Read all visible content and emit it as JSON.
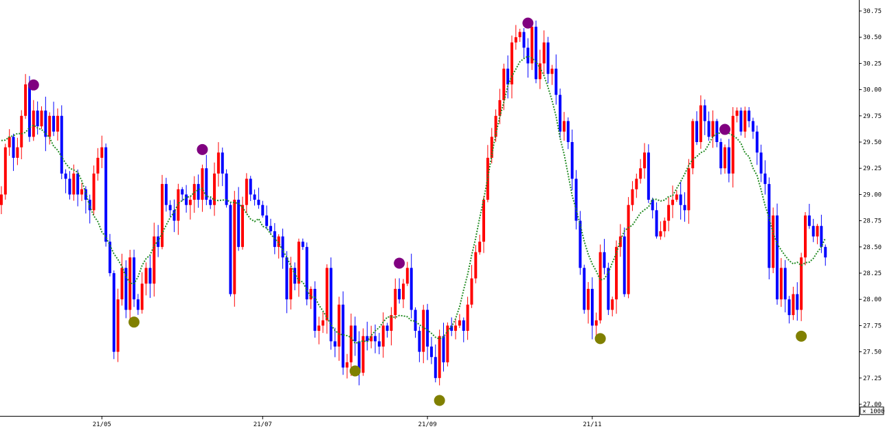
{
  "chart_data": {
    "type": "candlestick",
    "title": "",
    "xlabel": "",
    "ylabel": "",
    "ylim": [
      27.0,
      30.8
    ],
    "y_ticks": [
      "27.00",
      "27.25",
      "27.50",
      "27.75",
      "28.00",
      "28.25",
      "28.50",
      "28.75",
      "29.00",
      "29.25",
      "29.50",
      "29.75",
      "30.00",
      "30.25",
      "30.50",
      "30.75"
    ],
    "y_tick_values": [
      27.0,
      27.25,
      27.5,
      27.75,
      28.0,
      28.25,
      28.5,
      28.75,
      29.0,
      29.25,
      29.5,
      29.75,
      30.0,
      30.25,
      30.5,
      30.75
    ],
    "x_ticks": [
      {
        "label": "21/05",
        "index": 25
      },
      {
        "label": "21/07",
        "index": 65
      },
      {
        "label": "21/09",
        "index": 106
      },
      {
        "label": "21/11",
        "index": 147
      }
    ],
    "multiplier_label": "× 1000",
    "grid": false,
    "colors": {
      "up": "#ff0000",
      "down": "#0000ff",
      "ma": "#228B22",
      "buy_marker": "#808000",
      "sell_marker": "#800080"
    },
    "closes": [
      29.0,
      29.45,
      29.55,
      29.35,
      29.45,
      29.75,
      30.05,
      29.55,
      29.8,
      29.65,
      29.8,
      29.55,
      29.75,
      29.6,
      29.75,
      29.2,
      29.15,
      29.0,
      29.2,
      29.0,
      29.05,
      28.95,
      28.85,
      29.2,
      29.35,
      29.45,
      28.55,
      28.25,
      27.5,
      28.0,
      28.3,
      27.9,
      28.4,
      28.0,
      27.9,
      28.15,
      28.3,
      28.15,
      28.6,
      28.5,
      29.1,
      28.9,
      28.85,
      28.75,
      29.05,
      29.0,
      28.9,
      28.95,
      29.1,
      28.95,
      29.25,
      28.95,
      28.9,
      29.2,
      29.4,
      29.2,
      28.9,
      28.05,
      28.95,
      28.5,
      28.9,
      29.15,
      29.0,
      28.95,
      28.9,
      28.8,
      28.7,
      28.65,
      28.5,
      28.6,
      28.4,
      28.0,
      28.3,
      28.15,
      28.55,
      28.5,
      28.0,
      28.1,
      27.7,
      27.75,
      27.8,
      28.3,
      27.6,
      27.55,
      27.95,
      27.35,
      27.4,
      27.75,
      27.6,
      27.3,
      27.65,
      27.6,
      27.65,
      27.6,
      27.55,
      27.75,
      27.7,
      27.85,
      28.1,
      28.0,
      28.15,
      28.3,
      27.9,
      27.7,
      27.5,
      27.9,
      27.55,
      27.45,
      27.25,
      27.65,
      27.4,
      27.75,
      27.7,
      27.75,
      27.8,
      27.7,
      27.95,
      28.2,
      28.45,
      28.55,
      28.95,
      29.35,
      29.55,
      29.75,
      29.9,
      30.2,
      30.05,
      30.45,
      30.5,
      30.55,
      30.4,
      30.25,
      30.6,
      30.1,
      30.25,
      30.45,
      30.15,
      30.2,
      29.95,
      29.6,
      29.7,
      29.5,
      29.15,
      28.75,
      28.3,
      27.9,
      28.1,
      27.75,
      27.8,
      28.45,
      28.3,
      27.9,
      28.0,
      28.5,
      28.6,
      28.05,
      28.9,
      29.05,
      29.15,
      29.25,
      29.4,
      28.95,
      28.85,
      28.6,
      28.65,
      28.75,
      28.9,
      28.95,
      29.0,
      28.9,
      28.85,
      29.25,
      29.7,
      29.5,
      29.85,
      29.7,
      29.55,
      29.7,
      29.5,
      29.25,
      29.45,
      29.2,
      29.75,
      29.8,
      29.6,
      29.8,
      29.7,
      29.6,
      29.4,
      29.2,
      29.1,
      28.3,
      28.8,
      28.0,
      28.3,
      28.0,
      27.85,
      28.05,
      27.9,
      28.4,
      28.8,
      28.7,
      28.6,
      28.7,
      28.5,
      28.4
    ]
  }
}
